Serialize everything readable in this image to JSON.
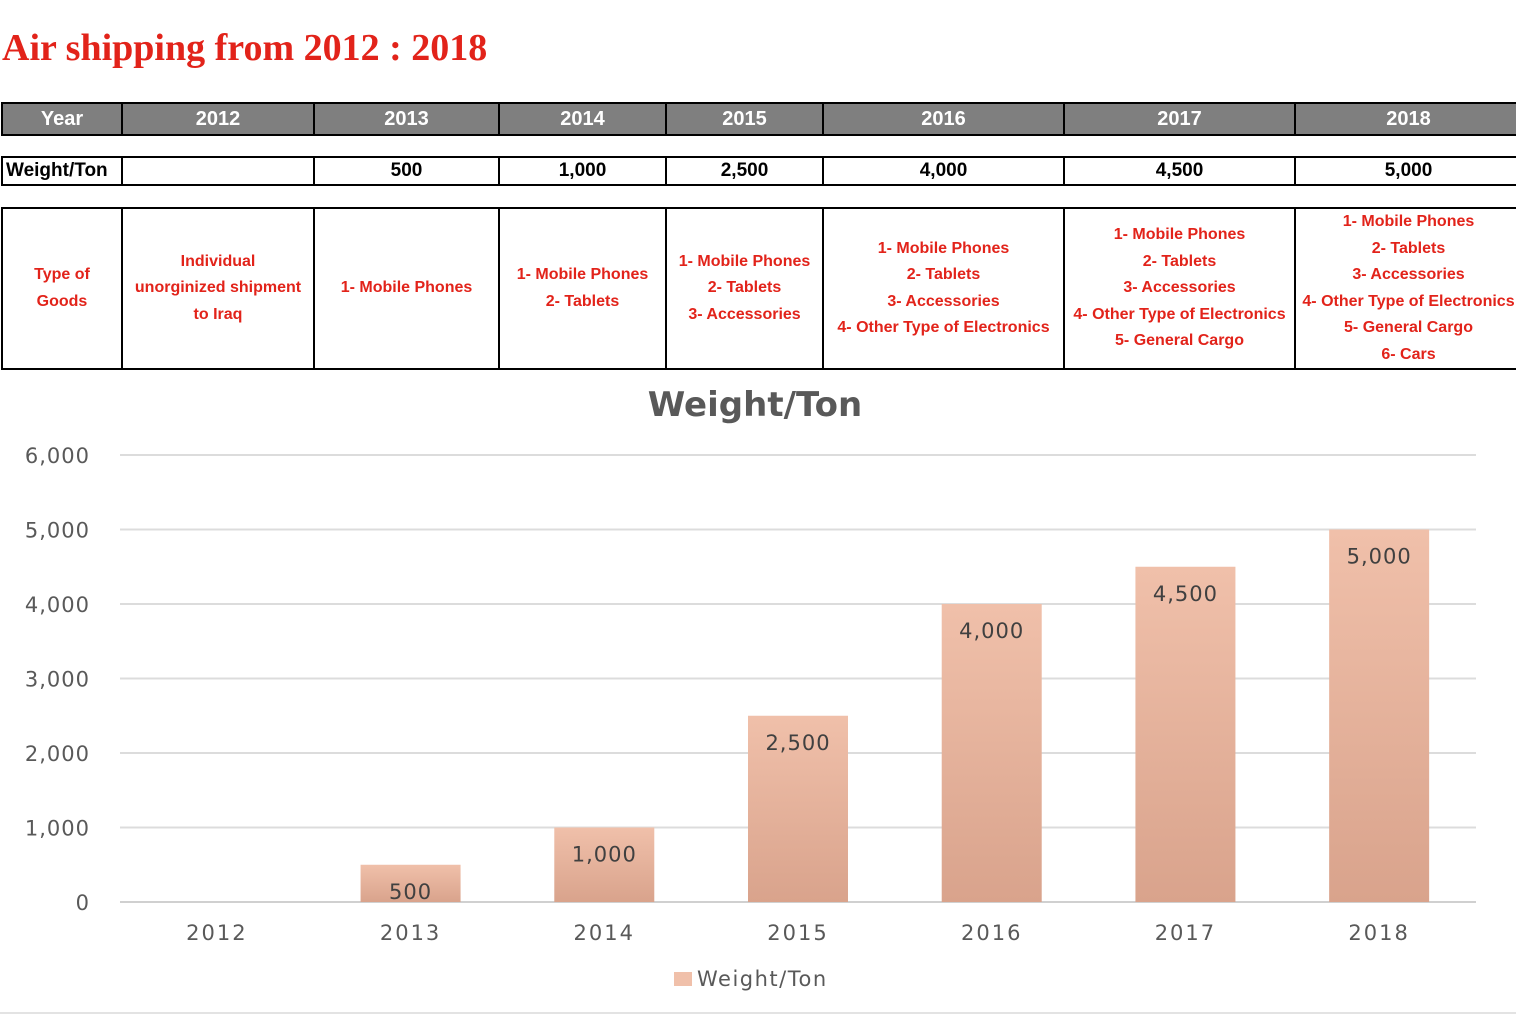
{
  "page": {
    "title": "Air shipping from 2012 : 2018"
  },
  "table": {
    "year_label": "Year",
    "years": [
      "2012",
      "2013",
      "2014",
      "2015",
      "2016",
      "2017",
      "2018"
    ],
    "weight_label": "Weight/Ton",
    "weights": [
      "",
      "500",
      "1,000",
      "2,500",
      "4,000",
      "4,500",
      "5,000"
    ],
    "goods_label": [
      "Type of",
      "Goods"
    ],
    "goods": [
      [
        "Individual",
        "unorginized shipment",
        "to Iraq"
      ],
      [
        "1- Mobile Phones"
      ],
      [
        "1- Mobile Phones",
        "2- Tablets"
      ],
      [
        "1- Mobile Phones",
        "2- Tablets",
        "3- Accessories"
      ],
      [
        "1- Mobile Phones",
        "2- Tablets",
        "3- Accessories",
        "4- Other Type of Electronics"
      ],
      [
        "1- Mobile Phones",
        "2- Tablets",
        "3- Accessories",
        "4- Other Type of Electronics",
        "5- General Cargo"
      ],
      [
        "1- Mobile Phones",
        "2- Tablets",
        "3- Accessories",
        "4- Other Type of Electronics",
        "5- General Cargo",
        "6- Cars"
      ]
    ],
    "header_bg": "#7f7f7f",
    "accent": "#e2231a"
  },
  "chart_data": {
    "type": "bar",
    "title": "Weight/Ton",
    "categories": [
      "2012",
      "2013",
      "2014",
      "2015",
      "2016",
      "2017",
      "2018"
    ],
    "series": [
      {
        "name": "Weight/Ton",
        "values": [
          0,
          500,
          1000,
          2500,
          4000,
          4500,
          5000
        ]
      }
    ],
    "data_labels": [
      "",
      "500",
      "1,000",
      "2,500",
      "4,000",
      "4,500",
      "5,000"
    ],
    "ylim": [
      0,
      6000
    ],
    "yticks": [
      0,
      1000,
      2000,
      3000,
      4000,
      5000,
      6000
    ],
    "ytick_labels": [
      "0",
      "1,000",
      "2,000",
      "3,000",
      "4,000",
      "5,000",
      "6,000"
    ],
    "grid": true,
    "legend": "bottom",
    "bar_color_top": "#f0c0aa",
    "bar_color_bottom": "#d9a38c"
  }
}
